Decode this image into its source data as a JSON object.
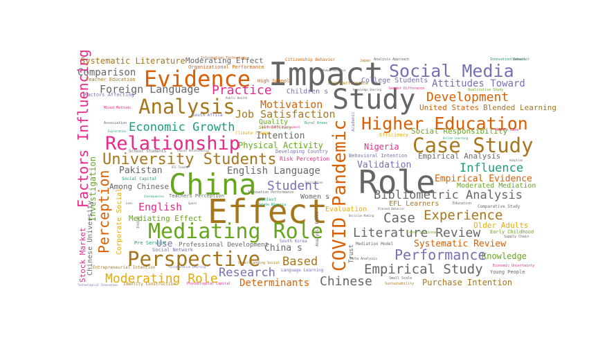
{
  "cloud": {
    "words": [
      {
        "text": "Impact",
        "color": "#666666"
      },
      {
        "text": "Effect",
        "color": "#a6761d"
      },
      {
        "text": "China",
        "color": "#66a61e"
      },
      {
        "text": "Role",
        "color": "#666666"
      },
      {
        "text": "Study",
        "color": "#666666"
      },
      {
        "text": "Evidence",
        "color": "#d95f02"
      },
      {
        "text": "Mediating Role",
        "color": "#66a61e"
      },
      {
        "text": "Social Media",
        "color": "#7570b3"
      },
      {
        "text": "Case Study",
        "color": "#a6761d"
      },
      {
        "text": "Higher Education",
        "color": "#d95f02"
      },
      {
        "text": "Relationship",
        "color": "#e7298a"
      },
      {
        "text": "Perspective",
        "color": "#a6761d"
      },
      {
        "text": "Analysis",
        "color": "#a6761d"
      },
      {
        "text": "University Students",
        "color": "#a6761d"
      },
      {
        "text": "COVID Pandemic",
        "color": "#d95f02"
      },
      {
        "text": "Factors Influencing",
        "color": "#e7298a"
      },
      {
        "text": "Perception",
        "color": "#d95f02"
      },
      {
        "text": "Economic Growth",
        "color": "#1b9e77"
      },
      {
        "text": "Literature Review",
        "color": "#666666"
      },
      {
        "text": "Empirical Study",
        "color": "#666666"
      },
      {
        "text": "Performance",
        "color": "#7570b3"
      },
      {
        "text": "Development",
        "color": "#d95f02"
      },
      {
        "text": "Bibliometric Analysis",
        "color": "#666666"
      },
      {
        "text": "Influence",
        "color": "#1b9e77"
      },
      {
        "text": "Student",
        "color": "#7570b3"
      },
      {
        "text": "Experience",
        "color": "#a6761d"
      },
      {
        "text": "Chinese",
        "color": "#666666"
      },
      {
        "text": "Practice",
        "color": "#e7298a"
      },
      {
        "text": "Moderating Role",
        "color": "#e6ab02"
      },
      {
        "text": "Research",
        "color": "#7570b3"
      },
      {
        "text": "Case",
        "color": "#666666"
      },
      {
        "text": "Based",
        "color": "#a6761d"
      },
      {
        "text": "Foreign Language",
        "color": "#666666"
      },
      {
        "text": "Motivation",
        "color": "#d95f02"
      },
      {
        "text": "Attitudes Toward",
        "color": "#7570b3"
      },
      {
        "text": "Job Satisfaction",
        "color": "#a6761d"
      },
      {
        "text": "English Language",
        "color": "#666666"
      },
      {
        "text": "English",
        "color": "#e7298a"
      },
      {
        "text": "Comparison",
        "color": "#666666"
      },
      {
        "text": "Systematic Literature",
        "color": "#a6761d"
      },
      {
        "text": "Determinants",
        "color": "#d95f02"
      },
      {
        "text": "Purchase Intention",
        "color": "#a6761d"
      },
      {
        "text": "Validation",
        "color": "#7570b3"
      },
      {
        "text": "Empirical Evidence",
        "color": "#d95f02"
      },
      {
        "text": "Systematic Review",
        "color": "#d95f02"
      },
      {
        "text": "Knowledge",
        "color": "#66a61e"
      },
      {
        "text": "Nigeria",
        "color": "#e7298a"
      },
      {
        "text": "Intention",
        "color": "#666666"
      },
      {
        "text": "Pakistan",
        "color": "#666666"
      },
      {
        "text": "Investigation",
        "color": "#66a61e"
      },
      {
        "text": "Moderating Effect",
        "color": "#666666"
      },
      {
        "text": "Mediating Effect",
        "color": "#66a61e"
      },
      {
        "text": "Use",
        "color": "#7570b3"
      },
      {
        "text": "China s",
        "color": "#666666"
      },
      {
        "text": "Stock Market",
        "color": "#e7298a"
      },
      {
        "text": "Among Chinese",
        "color": "#666666"
      },
      {
        "text": "Physical Activity",
        "color": "#66a61e"
      },
      {
        "text": "United States",
        "color": "#d95f02"
      },
      {
        "text": "Blended Learning",
        "color": "#a6761d"
      },
      {
        "text": "Social Responsibility",
        "color": "#66a61e"
      },
      {
        "text": "Empirical Analysis",
        "color": "#666666"
      },
      {
        "text": "Moderated Mediation",
        "color": "#66a61e"
      },
      {
        "text": "Older Adults",
        "color": "#e6ab02"
      },
      {
        "text": "Chinese University",
        "color": "#666666"
      },
      {
        "text": "Corporate Social",
        "color": "#e6ab02"
      },
      {
        "text": "EFL Learners",
        "color": "#a6761d"
      },
      {
        "text": "Women s",
        "color": "#666666"
      },
      {
        "text": "Evaluation",
        "color": "#e6ab02"
      },
      {
        "text": "Children s",
        "color": "#7570b3"
      },
      {
        "text": "Quality",
        "color": "#66a61e"
      },
      {
        "text": "College Students",
        "color": "#7570b3"
      },
      {
        "text": "Professional Development",
        "color": "#666666"
      },
      {
        "text": "Organizational Performance",
        "color": "#d95f02"
      },
      {
        "text": "Citizenship Behavior",
        "color": "#d95f02"
      },
      {
        "text": "Teacher Education",
        "color": "#a6761d"
      },
      {
        "text": "Firm Performance",
        "color": "#a6761d"
      },
      {
        "text": "High School",
        "color": "#d95f02"
      },
      {
        "text": "Risk Perception",
        "color": "#e7298a"
      },
      {
        "text": "Developing Country",
        "color": "#7570b3"
      },
      {
        "text": "Behavioral Intention",
        "color": "#7570b3"
      },
      {
        "text": "Social Network",
        "color": "#7570b3"
      },
      {
        "text": "South Korea",
        "color": "#7570b3"
      },
      {
        "text": "Factors Affecting",
        "color": "#7570b3"
      },
      {
        "text": "Mediation Model",
        "color": "#666666"
      },
      {
        "text": "Entrepreneurial Intention",
        "color": "#a6761d"
      },
      {
        "text": "Identity Construction",
        "color": "#a6761d"
      },
      {
        "text": "Language Learning",
        "color": "#7570b3"
      },
      {
        "text": "Trust",
        "color": "#666666"
      },
      {
        "text": "Teachers Perception",
        "color": "#666666"
      },
      {
        "text": "School Students",
        "color": "#666666"
      },
      {
        "text": "Social Capital",
        "color": "#1b9e77"
      },
      {
        "text": "Young People",
        "color": "#666666"
      },
      {
        "text": "Comparative Study",
        "color": "#666666"
      },
      {
        "text": "Early Childhood",
        "color": "#66a61e"
      },
      {
        "text": "Climate Change",
        "color": "#e6ab02"
      },
      {
        "text": "Self Efficacy",
        "color": "#66a61e"
      },
      {
        "text": "Academic",
        "color": "#7570b3"
      },
      {
        "text": "Efficiency",
        "color": "#e6ab02"
      },
      {
        "text": "Pre Service",
        "color": "#1b9e77"
      },
      {
        "text": "Context",
        "color": "#1b9e77"
      },
      {
        "text": "Analysis Based",
        "color": "#666666"
      },
      {
        "text": "Analysis Approach",
        "color": "#666666"
      },
      {
        "text": "Information Technology",
        "color": "#d95f02"
      },
      {
        "text": "Innovation Behavior",
        "color": "#1b9e77"
      },
      {
        "text": "Psychological Capital",
        "color": "#e7298a"
      },
      {
        "text": "Economic Uncertainty",
        "color": "#e7298a"
      },
      {
        "text": "Technological Innovation",
        "color": "#7570b3"
      },
      {
        "text": "Small Scale",
        "color": "#666666"
      },
      {
        "text": "Sustainability",
        "color": "#a6761d"
      },
      {
        "text": "Supply Chain",
        "color": "#666666"
      },
      {
        "text": "South Africa",
        "color": "#7570b3"
      },
      {
        "text": "State Nigeria",
        "color": "#1b9e77"
      },
      {
        "text": "Innovation Performance",
        "color": "#666666"
      },
      {
        "text": "Understanding Social",
        "color": "#a6761d"
      },
      {
        "text": "Qualitative Study",
        "color": "#66a61e"
      },
      {
        "text": "Gender Difference",
        "color": "#e7298a"
      },
      {
        "text": "Knowledge Sharing",
        "color": "#666666"
      },
      {
        "text": "Public Health",
        "color": "#666666"
      },
      {
        "text": "Rural Areas",
        "color": "#1b9e77"
      },
      {
        "text": "Sustainable Development",
        "color": "#e7298a"
      },
      {
        "text": "Online Learning",
        "color": "#1b9e77"
      },
      {
        "text": "Health Care",
        "color": "#e7298a"
      },
      {
        "text": "Mixed Methods",
        "color": "#e7298a"
      },
      {
        "text": "Association",
        "color": "#666666"
      },
      {
        "text": "Exploration",
        "color": "#1b9e77"
      },
      {
        "text": "Decision Making",
        "color": "#666666"
      },
      {
        "text": "Cross Sectional",
        "color": "#66a61e"
      },
      {
        "text": "Planned Behavior",
        "color": "#666666"
      },
      {
        "text": "Meta Analysis",
        "color": "#666666"
      },
      {
        "text": "Implication",
        "color": "#666666"
      },
      {
        "text": "Education",
        "color": "#666666"
      },
      {
        "text": "Adoption",
        "color": "#666666"
      },
      {
        "text": "Framework",
        "color": "#666666"
      },
      {
        "text": "Human Resource",
        "color": "#666666"
      },
      {
        "text": "Collaborative Learning",
        "color": "#7570b3"
      },
      {
        "text": "EFL Teacher",
        "color": "#666666"
      },
      {
        "text": "Consequences",
        "color": "#1b9e77"
      },
      {
        "text": "Causal Relationship",
        "color": "#666666"
      },
      {
        "text": "Spain",
        "color": "#666666"
      },
      {
        "text": "Lens",
        "color": "#666666"
      },
      {
        "text": "Japan",
        "color": "#a6761d"
      },
      {
        "text": "Indian",
        "color": "#666666"
      }
    ]
  }
}
